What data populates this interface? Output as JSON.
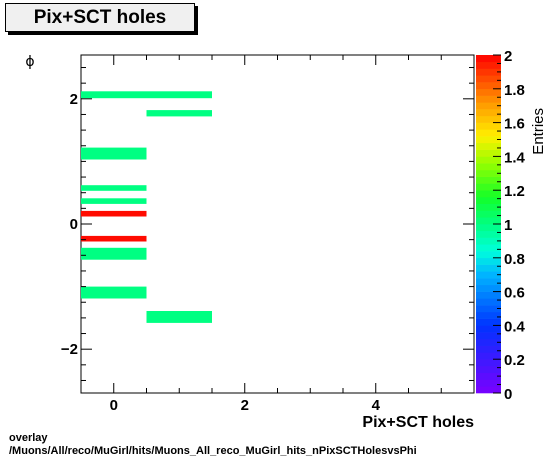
{
  "title": "Pix+SCT holes",
  "footer": {
    "line1": "overlay",
    "line2": "/Muons/All/reco/MuGirl/hits/Muons_All_reco_MuGirl_hits_nPixSCTHolesvsPhi"
  },
  "chart_data": {
    "type": "heatmap",
    "title": "Pix+SCT holes",
    "xlabel": "Pix+SCT holes",
    "ylabel": "ϕ",
    "colorbar_label": "Entries",
    "xlim": [
      -0.5,
      5.5
    ],
    "ylim": [
      -2.7,
      2.7
    ],
    "zlim": [
      0,
      2
    ],
    "x_ticks": [
      0,
      2,
      4
    ],
    "y_ticks": [
      -2,
      0,
      2
    ],
    "z_ticks": [
      0,
      0.2,
      0.4,
      0.6,
      0.8,
      1,
      1.2,
      1.4,
      1.6,
      1.8,
      2
    ],
    "z_tick_labels": [
      "0",
      "0.2",
      "0.4",
      "0.6",
      "0.8",
      "1",
      "1.2",
      "1.4",
      "1.6",
      "1.8",
      "2"
    ],
    "cells": [
      {
        "x0": -0.5,
        "x1": 1.5,
        "y0": 2.01,
        "y1": 2.12,
        "value": 1
      },
      {
        "x0": 0.5,
        "x1": 1.5,
        "y0": 1.72,
        "y1": 1.82,
        "value": 1
      },
      {
        "x0": -0.5,
        "x1": 0.5,
        "y0": 1.03,
        "y1": 1.22,
        "value": 1
      },
      {
        "x0": -0.5,
        "x1": 0.5,
        "y0": 0.53,
        "y1": 0.62,
        "value": 1
      },
      {
        "x0": -0.5,
        "x1": 0.5,
        "y0": 0.32,
        "y1": 0.41,
        "value": 1
      },
      {
        "x0": -0.5,
        "x1": 0.5,
        "y0": 0.12,
        "y1": 0.21,
        "value": 2
      },
      {
        "x0": -0.5,
        "x1": 0.5,
        "y0": -0.28,
        "y1": -0.19,
        "value": 2
      },
      {
        "x0": -0.5,
        "x1": 0.5,
        "y0": -0.57,
        "y1": -0.38,
        "value": 1
      },
      {
        "x0": -0.5,
        "x1": 0.5,
        "y0": -1.19,
        "y1": -1.0,
        "value": 1
      },
      {
        "x0": 0.5,
        "x1": 1.5,
        "y0": -1.58,
        "y1": -1.39,
        "value": 1
      }
    ]
  }
}
